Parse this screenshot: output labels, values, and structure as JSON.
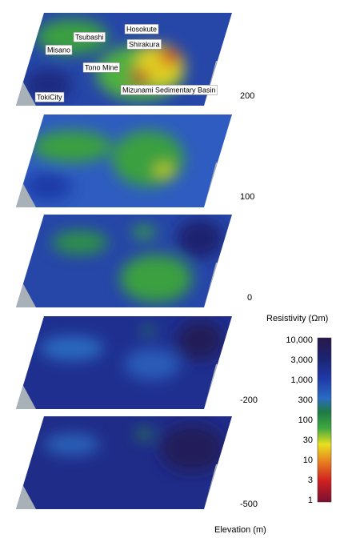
{
  "place_labels": [
    "Hosokute",
    "Tsubashi",
    "Shirakura",
    "Misano",
    "Tono Mine",
    "Mizunami Sedimentary Basin",
    "TokiCity"
  ],
  "elevation_labels": [
    "200",
    "100",
    "0",
    "-200",
    "-500"
  ],
  "colorbar": {
    "title": "Resistivity (Ωm)",
    "ticks": [
      "10,000",
      "3,000",
      "1,000",
      "300",
      "100",
      "30",
      "10",
      "3",
      "1"
    ]
  },
  "axis_label": "Elevation (m)"
}
